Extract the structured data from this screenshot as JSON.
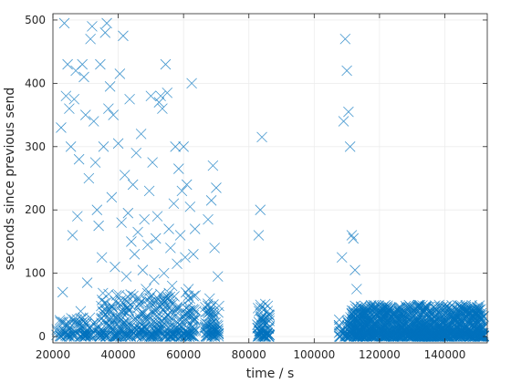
{
  "chart_data": {
    "type": "scatter",
    "title": "",
    "xlabel": "time / s",
    "ylabel": "seconds since previous send",
    "xlim": [
      20000,
      153000
    ],
    "ylim": [
      -10,
      510
    ],
    "xticks": [
      20000,
      40000,
      60000,
      80000,
      100000,
      120000,
      140000
    ],
    "xtick_labels": [
      "20000",
      "40000",
      "60000",
      "80000",
      "100000",
      "120000",
      "140000"
    ],
    "yticks": [
      0,
      100,
      200,
      300,
      400,
      500
    ],
    "ytick_labels": [
      "0",
      "100",
      "200",
      "300",
      "400",
      "500"
    ],
    "grid": true,
    "marker": "x",
    "color": "#0072bd",
    "series": [
      {
        "name": "",
        "points": [
          [
            22500,
            330
          ],
          [
            23000,
            70
          ],
          [
            23500,
            495
          ],
          [
            24000,
            380
          ],
          [
            24500,
            430
          ],
          [
            25000,
            360
          ],
          [
            25500,
            300
          ],
          [
            26000,
            160
          ],
          [
            26500,
            375
          ],
          [
            27000,
            420
          ],
          [
            27500,
            190
          ],
          [
            28000,
            280
          ],
          [
            28500,
            40
          ],
          [
            29000,
            430
          ],
          [
            29500,
            410
          ],
          [
            30000,
            350
          ],
          [
            30500,
            85
          ],
          [
            31000,
            250
          ],
          [
            31500,
            470
          ],
          [
            32000,
            490
          ],
          [
            32500,
            340
          ],
          [
            33000,
            275
          ],
          [
            33500,
            200
          ],
          [
            34000,
            175
          ],
          [
            34500,
            430
          ],
          [
            35000,
            125
          ],
          [
            35500,
            300
          ],
          [
            36000,
            480
          ],
          [
            36500,
            495
          ],
          [
            37000,
            360
          ],
          [
            37500,
            395
          ],
          [
            38000,
            220
          ],
          [
            38500,
            350
          ],
          [
            39000,
            110
          ],
          [
            39500,
            65
          ],
          [
            40000,
            305
          ],
          [
            40500,
            415
          ],
          [
            41000,
            180
          ],
          [
            41500,
            475
          ],
          [
            42000,
            255
          ],
          [
            42500,
            95
          ],
          [
            43000,
            195
          ],
          [
            43500,
            375
          ],
          [
            44000,
            150
          ],
          [
            44500,
            240
          ],
          [
            45000,
            130
          ],
          [
            45500,
            290
          ],
          [
            46000,
            165
          ],
          [
            46500,
            60
          ],
          [
            47000,
            320
          ],
          [
            47500,
            105
          ],
          [
            48000,
            185
          ],
          [
            48500,
            75
          ],
          [
            49000,
            145
          ],
          [
            49500,
            230
          ],
          [
            50000,
            380
          ],
          [
            50500,
            275
          ],
          [
            51000,
            90
          ],
          [
            51500,
            155
          ],
          [
            52000,
            190
          ],
          [
            52500,
            370
          ],
          [
            53000,
            380
          ],
          [
            53500,
            360
          ],
          [
            54000,
            100
          ],
          [
            54500,
            430
          ],
          [
            55000,
            385
          ],
          [
            55500,
            170
          ],
          [
            56000,
            140
          ],
          [
            56500,
            80
          ],
          [
            57000,
            210
          ],
          [
            57500,
            300
          ],
          [
            58000,
            115
          ],
          [
            58500,
            265
          ],
          [
            59000,
            160
          ],
          [
            59500,
            230
          ],
          [
            60000,
            300
          ],
          [
            60500,
            125
          ],
          [
            61000,
            240
          ],
          [
            61500,
            75
          ],
          [
            62000,
            205
          ],
          [
            62500,
            400
          ],
          [
            63000,
            130
          ],
          [
            63500,
            170
          ],
          [
            67500,
            185
          ],
          [
            68000,
            60
          ],
          [
            68500,
            215
          ],
          [
            69000,
            270
          ],
          [
            69500,
            140
          ],
          [
            70000,
            235
          ],
          [
            70500,
            95
          ],
          [
            83000,
            160
          ],
          [
            83500,
            200
          ],
          [
            84000,
            315
          ],
          [
            108500,
            125
          ],
          [
            109000,
            340
          ],
          [
            109500,
            470
          ],
          [
            110000,
            420
          ],
          [
            110500,
            355
          ],
          [
            111000,
            300
          ],
          [
            111500,
            160
          ],
          [
            112000,
            155
          ],
          [
            112500,
            105
          ],
          [
            113000,
            75
          ]
        ]
      }
    ],
    "dense_clusters": [
      {
        "x_range": [
          21000,
          34000
        ],
        "y_range": [
          0,
          30
        ],
        "count": 90
      },
      {
        "x_range": [
          34000,
          64000
        ],
        "y_range": [
          0,
          70
        ],
        "count": 380
      },
      {
        "x_range": [
          66500,
          71000
        ],
        "y_range": [
          0,
          55
        ],
        "count": 70
      },
      {
        "x_range": [
          82500,
          86500
        ],
        "y_range": [
          0,
          55
        ],
        "count": 70
      },
      {
        "x_range": [
          107500,
          110500
        ],
        "y_range": [
          0,
          30
        ],
        "count": 25
      },
      {
        "x_range": [
          110500,
          152000
        ],
        "y_range": [
          0,
          50
        ],
        "count": 1300
      }
    ]
  }
}
